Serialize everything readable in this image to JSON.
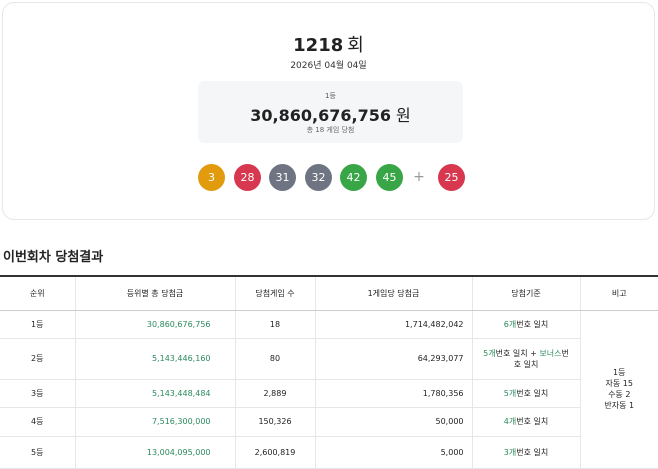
{
  "draw": {
    "number": "1218",
    "unit": "회",
    "date": "2026년 04월 04일",
    "prize_rank": "1등",
    "prize_amount": "30,860,676,756",
    "prize_unit": "원",
    "winners": "총 18 게임 당첨",
    "balls": [
      {
        "label": "3",
        "color": "#e29b0c"
      },
      {
        "label": "28",
        "color": "#d7374f"
      },
      {
        "label": "31",
        "color": "#6e7481"
      },
      {
        "label": "32",
        "color": "#6e7481"
      },
      {
        "label": "42",
        "color": "#38a546"
      },
      {
        "label": "45",
        "color": "#38a546"
      }
    ],
    "plus": "+",
    "bonus": {
      "label": "25",
      "color": "#d7374f"
    }
  },
  "section_title": "이번회차 당첨결과",
  "table": {
    "headers": [
      "순위",
      "등위별 총 당첨금",
      "당첨게임 수",
      "1게임당 당첨금",
      "당첨기준",
      "비고"
    ],
    "rows": [
      {
        "rank": "1등",
        "total": "30,860,676,756",
        "games": "18",
        "per_game": "1,714,482,042",
        "criteria": [
          "6개",
          "번호 일치"
        ]
      },
      {
        "rank": "2등",
        "total": "5,143,446,160",
        "games": "80",
        "per_game": "64,293,077",
        "criteria": [
          "5개",
          "번호 일치 + ",
          "보너스",
          "번호 일치"
        ]
      },
      {
        "rank": "3등",
        "total": "5,143,448,484",
        "games": "2,889",
        "per_game": "1,780,356",
        "criteria": [
          "5개",
          "번호 일치"
        ]
      },
      {
        "rank": "4등",
        "total": "7,516,300,000",
        "games": "150,326",
        "per_game": "50,000",
        "criteria": [
          "4개",
          "번호 일치"
        ]
      },
      {
        "rank": "5등",
        "total": "13,004,095,000",
        "games": "2,600,819",
        "per_game": "5,000",
        "criteria": [
          "3개",
          "번호 일치"
        ]
      }
    ],
    "remark": [
      "1등",
      "자동 15",
      "수동 2",
      "반자동 1"
    ]
  }
}
